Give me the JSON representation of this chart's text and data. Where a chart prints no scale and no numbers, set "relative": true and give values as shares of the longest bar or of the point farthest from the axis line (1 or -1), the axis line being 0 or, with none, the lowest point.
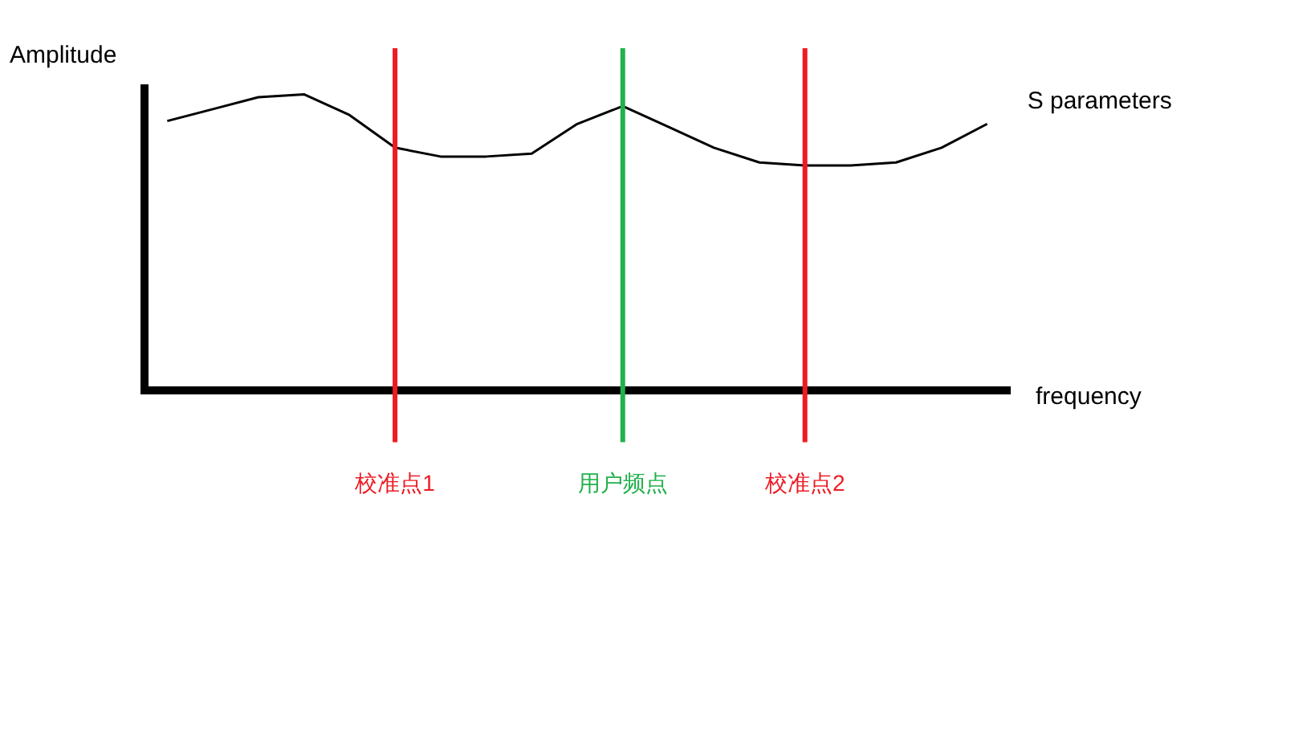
{
  "chart_data": {
    "type": "line",
    "relative": true,
    "xlabel": "frequency",
    "ylabel": "Amplitude",
    "tick_labels": "x",
    "grid": false,
    "legend": false,
    "marker": "none",
    "line_style": "solid",
    "categories": [
      null,
      null,
      null,
      null,
      null,
      "校准点1",
      null,
      null,
      null,
      null,
      "用户频点",
      null,
      null,
      null,
      "校准点2",
      null,
      null,
      null,
      null
    ],
    "series": [
      {
        "name": "S parameters",
        "color": "#000000",
        "values": [
          0.91,
          0.95,
          0.99,
          1,
          0.93,
          0.82,
          0.79,
          0.79,
          0.8,
          0.9,
          0.96,
          0.89,
          0.82,
          0.77,
          0.76,
          0.76,
          0.77,
          0.82,
          0.9
        ]
      }
    ],
    "ref_lines": [
      {
        "axis": "x",
        "value": "校准点1",
        "color": "#ed1c24"
      },
      {
        "axis": "x",
        "value": "用户频点",
        "color": "#22b14c"
      },
      {
        "axis": "x",
        "value": "校准点2",
        "color": "#ed1c24"
      }
    ]
  }
}
